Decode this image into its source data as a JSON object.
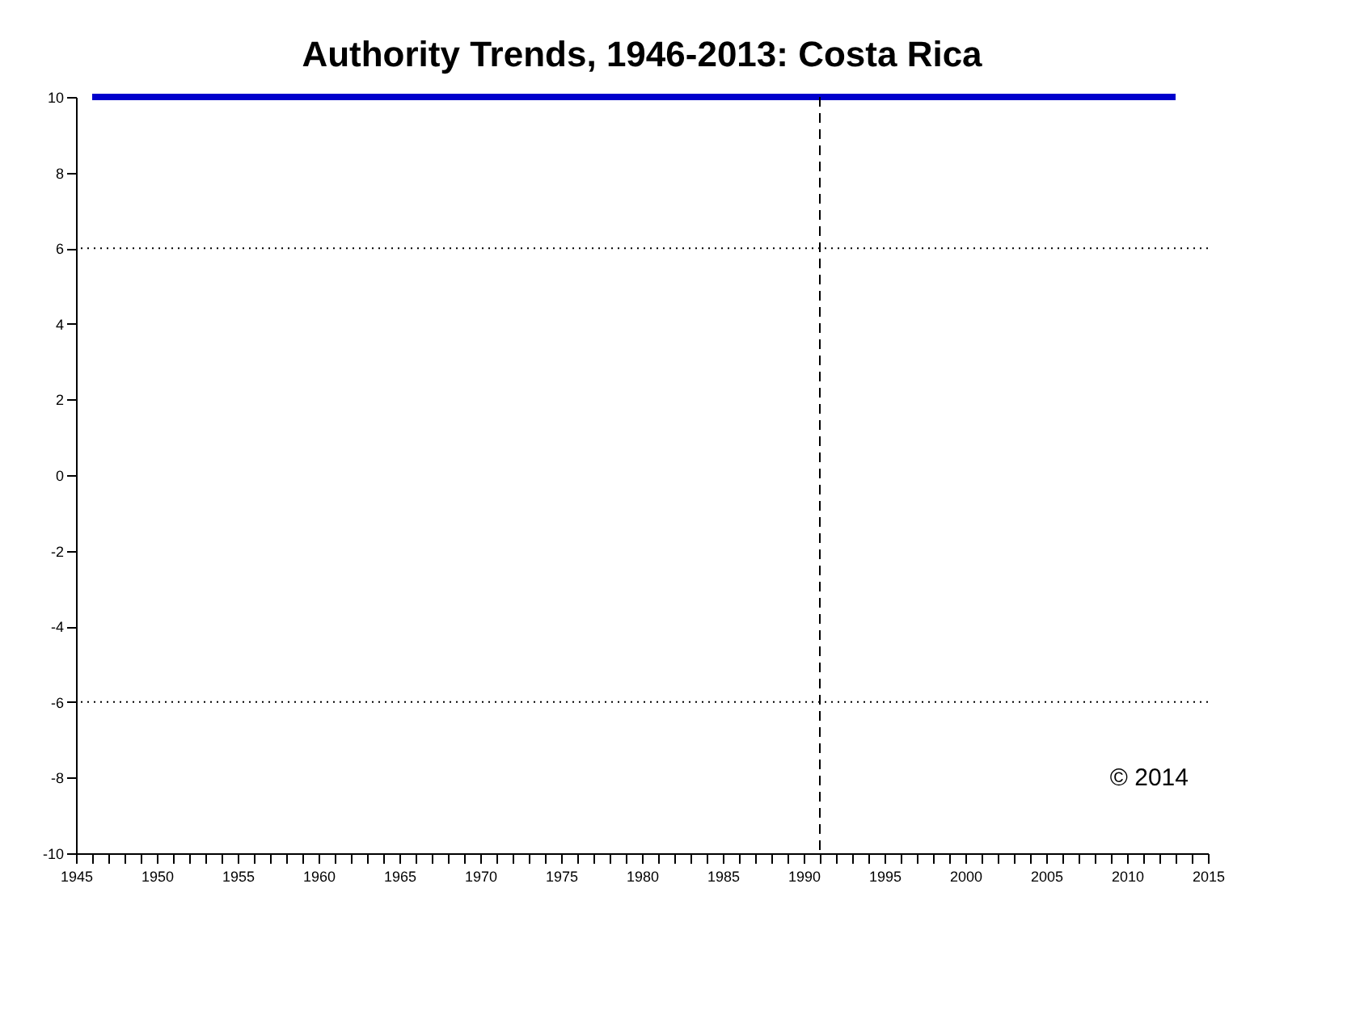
{
  "chart_data": {
    "type": "line",
    "title": "Authority Trends, 1946-2013: Costa Rica",
    "x": [
      1946,
      2013
    ],
    "series": [
      {
        "color": "#0000cc",
        "values": [
          10,
          10
        ]
      }
    ],
    "xlim": [
      1945,
      2015
    ],
    "xticks": [
      1945,
      {
        "value": 1946,
        "label": null
      },
      {
        "value": 1947,
        "label": null
      },
      {
        "value": 1948,
        "label": null
      },
      {
        "value": 1949,
        "label": null
      },
      1950,
      {
        "value": 1951,
        "label": null
      },
      {
        "value": 1952,
        "label": null
      },
      {
        "value": 1953,
        "label": null
      },
      {
        "value": 1954,
        "label": null
      },
      1955,
      {
        "value": 1956,
        "label": null
      },
      {
        "value": 1957,
        "label": null
      },
      {
        "value": 1958,
        "label": null
      },
      {
        "value": 1959,
        "label": null
      },
      1960,
      {
        "value": 1961,
        "label": null
      },
      {
        "value": 1962,
        "label": null
      },
      {
        "value": 1963,
        "label": null
      },
      {
        "value": 1964,
        "label": null
      },
      1965,
      {
        "value": 1966,
        "label": null
      },
      {
        "value": 1967,
        "label": null
      },
      {
        "value": 1968,
        "label": null
      },
      {
        "value": 1969,
        "label": null
      },
      1970,
      {
        "value": 1971,
        "label": null
      },
      {
        "value": 1972,
        "label": null
      },
      {
        "value": 1973,
        "label": null
      },
      {
        "value": 1974,
        "label": null
      },
      1975,
      {
        "value": 1976,
        "label": null
      },
      {
        "value": 1977,
        "label": null
      },
      {
        "value": 1978,
        "label": null
      },
      {
        "value": 1979,
        "label": null
      },
      1980,
      {
        "value": 1981,
        "label": null
      },
      {
        "value": 1982,
        "label": null
      },
      {
        "value": 1983,
        "label": null
      },
      {
        "value": 1984,
        "label": null
      },
      1985,
      {
        "value": 1986,
        "label": null
      },
      {
        "value": 1987,
        "label": null
      },
      {
        "value": 1988,
        "label": null
      },
      {
        "value": 1989,
        "label": null
      },
      1990,
      {
        "value": 1991,
        "label": null
      },
      {
        "value": 1992,
        "label": null
      },
      {
        "value": 1993,
        "label": null
      },
      {
        "value": 1994,
        "label": null
      },
      1995,
      {
        "value": 1996,
        "label": null
      },
      {
        "value": 1997,
        "label": null
      },
      {
        "value": 1998,
        "label": null
      },
      {
        "value": 1999,
        "label": null
      },
      2000,
      {
        "value": 2001,
        "label": null
      },
      {
        "value": 2002,
        "label": null
      },
      {
        "value": 2003,
        "label": null
      },
      {
        "value": 2004,
        "label": null
      },
      2005,
      {
        "value": 2006,
        "label": null
      },
      {
        "value": 2007,
        "label": null
      },
      {
        "value": 2008,
        "label": null
      },
      {
        "value": 2009,
        "label": null
      },
      2010,
      {
        "value": 2011,
        "label": null
      },
      {
        "value": 2012,
        "label": null
      },
      {
        "value": 2013,
        "label": null
      },
      {
        "value": 2014,
        "label": null
      },
      2015
    ],
    "ylim": [
      -10,
      10
    ],
    "yticks": [
      -10,
      -8,
      -6,
      -4,
      -2,
      0,
      2,
      4,
      6,
      8,
      10
    ],
    "ref_lines": [
      {
        "axis": "y",
        "value": 6,
        "line_style": "dotted"
      },
      {
        "axis": "y",
        "value": -6,
        "line_style": "dotted"
      },
      {
        "axis": "x",
        "value": 1991,
        "line_style": "dashed"
      }
    ],
    "annotations": [
      "© 2014"
    ],
    "grid": false,
    "marker": "none",
    "line_style": "solid"
  }
}
